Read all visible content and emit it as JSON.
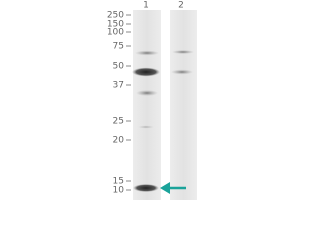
{
  "lane_labels": [
    "1",
    "2"
  ],
  "markers": [
    "250",
    "150",
    "100",
    "75",
    "50",
    "37",
    "25",
    "20",
    "15",
    "10"
  ]
}
